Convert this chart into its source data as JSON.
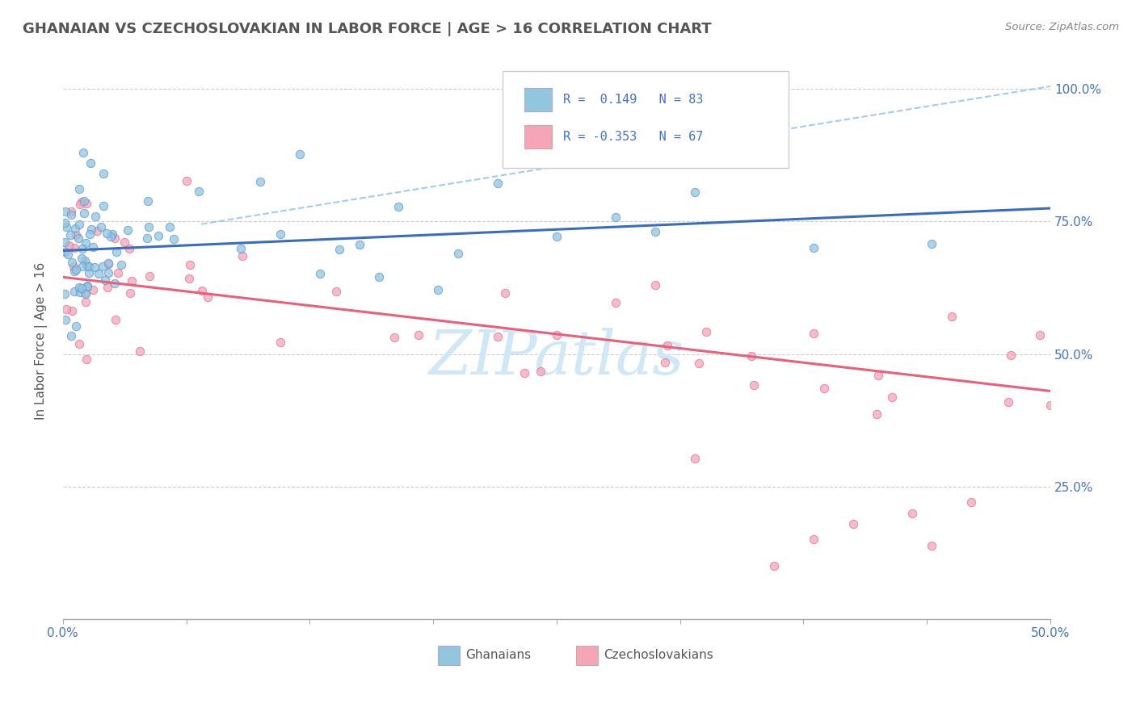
{
  "title": "GHANAIAN VS CZECHOSLOVAKIAN IN LABOR FORCE | AGE > 16 CORRELATION CHART",
  "source_text": "Source: ZipAtlas.com",
  "legend_label1": "Ghanaians",
  "legend_label2": "Czechoslovakians",
  "R1": 0.149,
  "N1": 83,
  "R2": -0.353,
  "N2": 67,
  "color_blue": "#92c5de",
  "color_pink": "#f4a6b8",
  "color_blue_line": "#3a6dbf",
  "color_pink_line": "#e8607a",
  "color_blue_dash": "#92c5de",
  "title_color": "#555555",
  "axis_color": "#4472c4",
  "watermark_color": "#d0e8f5",
  "xmin": 0.0,
  "xmax": 0.5,
  "ymin": 0.0,
  "ymax": 1.05,
  "blue_line_x0": 0.0,
  "blue_line_y0": 0.695,
  "blue_line_x1": 0.5,
  "blue_line_y1": 0.775,
  "pink_line_x0": 0.0,
  "pink_line_y0": 0.645,
  "pink_line_x1": 0.5,
  "pink_line_y1": 0.43,
  "dash_line_x0": 0.07,
  "dash_line_y0": 0.745,
  "dash_line_x1": 0.5,
  "dash_line_y1": 1.005,
  "grid_ticks": [
    0.25,
    0.5,
    0.75,
    1.0
  ]
}
